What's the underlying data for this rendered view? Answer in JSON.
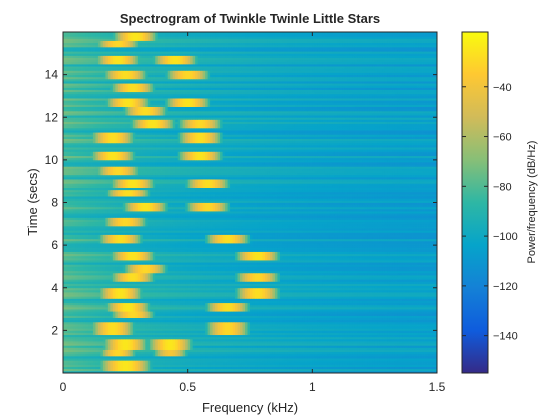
{
  "chart_data": {
    "type": "heatmap",
    "title": "Spectrogram of Twinkle Twinle Little Stars",
    "xlabel": "Frequency (kHz)",
    "ylabel": "Time (secs)",
    "xlim": [
      0,
      1.5
    ],
    "ylim": [
      0,
      16
    ],
    "xticks": [
      0,
      0.5,
      1,
      1.5
    ],
    "xtick_labels": [
      "0",
      "0.5",
      "1",
      "1.5"
    ],
    "yticks": [
      2,
      4,
      6,
      8,
      10,
      12,
      14
    ],
    "ytick_labels": [
      "2",
      "4",
      "6",
      "8",
      "10",
      "12",
      "14"
    ],
    "colorbar": {
      "label": "Power/frequency (dB/Hz)",
      "range": [
        -155,
        -18
      ],
      "ticks": [
        -140,
        -120,
        -100,
        -80,
        -60,
        -40
      ],
      "tick_labels": [
        "−140",
        "−120",
        "−100",
        "−80",
        "−60",
        "−40"
      ],
      "colormap": "parula"
    },
    "background_level_db": -100,
    "note_rows": [
      {
        "t": [
          0.15,
          0.55
        ],
        "peaks": [
          {
            "f": 0.25,
            "db": -25,
            "w": 0.07
          }
        ]
      },
      {
        "t": [
          0.85,
          1.1
        ],
        "peaks": [
          {
            "f": 0.22,
            "db": -30,
            "w": 0.05
          },
          {
            "f": 0.43,
            "db": -38,
            "w": 0.05
          }
        ]
      },
      {
        "t": [
          1.1,
          1.55
        ],
        "peaks": [
          {
            "f": 0.25,
            "db": -25,
            "w": 0.06
          },
          {
            "f": 0.43,
            "db": -25,
            "w": 0.06
          }
        ]
      },
      {
        "t": [
          1.85,
          2.35
        ],
        "peaks": [
          {
            "f": 0.2,
            "db": -28,
            "w": 0.06
          },
          {
            "f": 0.66,
            "db": -30,
            "w": 0.06
          }
        ]
      },
      {
        "t": [
          2.6,
          2.9
        ],
        "peaks": [
          {
            "f": 0.28,
            "db": -30,
            "w": 0.06
          }
        ]
      },
      {
        "t": [
          2.9,
          3.3
        ],
        "peaks": [
          {
            "f": 0.26,
            "db": -25,
            "w": 0.06
          },
          {
            "f": 0.66,
            "db": -28,
            "w": 0.06
          }
        ]
      },
      {
        "t": [
          3.55,
          3.95
        ],
        "peaks": [
          {
            "f": 0.23,
            "db": -26,
            "w": 0.06
          },
          {
            "f": 0.78,
            "db": -28,
            "w": 0.06
          }
        ]
      },
      {
        "t": [
          4.35,
          4.7
        ],
        "peaks": [
          {
            "f": 0.28,
            "db": -28,
            "w": 0.06
          },
          {
            "f": 0.78,
            "db": -30,
            "w": 0.06
          }
        ]
      },
      {
        "t": [
          4.75,
          5.1
        ],
        "peaks": [
          {
            "f": 0.33,
            "db": -30,
            "w": 0.06
          }
        ]
      },
      {
        "t": [
          5.3,
          5.7
        ],
        "peaks": [
          {
            "f": 0.28,
            "db": -26,
            "w": 0.06
          },
          {
            "f": 0.78,
            "db": -26,
            "w": 0.06
          }
        ]
      },
      {
        "t": [
          6.1,
          6.45
        ],
        "peaks": [
          {
            "f": 0.23,
            "db": -28,
            "w": 0.06
          },
          {
            "f": 0.66,
            "db": -28,
            "w": 0.06
          }
        ]
      },
      {
        "t": [
          6.95,
          7.35
        ],
        "peaks": [
          {
            "f": 0.25,
            "db": -30,
            "w": 0.06
          }
        ]
      },
      {
        "t": [
          7.6,
          8.0
        ],
        "peaks": [
          {
            "f": 0.33,
            "db": -26,
            "w": 0.06
          },
          {
            "f": 0.58,
            "db": -30,
            "w": 0.06
          }
        ]
      },
      {
        "t": [
          8.3,
          8.6
        ],
        "peaks": [
          {
            "f": 0.26,
            "db": -28,
            "w": 0.06
          }
        ]
      },
      {
        "t": [
          8.75,
          9.1
        ],
        "peaks": [
          {
            "f": 0.28,
            "db": -26,
            "w": 0.06
          },
          {
            "f": 0.58,
            "db": -28,
            "w": 0.06
          }
        ]
      },
      {
        "t": [
          9.35,
          9.7
        ],
        "peaks": [
          {
            "f": 0.22,
            "db": -30,
            "w": 0.06
          }
        ]
      },
      {
        "t": [
          10.05,
          10.45
        ],
        "peaks": [
          {
            "f": 0.2,
            "db": -26,
            "w": 0.06
          },
          {
            "f": 0.55,
            "db": -26,
            "w": 0.06
          }
        ]
      },
      {
        "t": [
          10.85,
          11.25
        ],
        "peaks": [
          {
            "f": 0.2,
            "db": -28,
            "w": 0.06
          },
          {
            "f": 0.55,
            "db": -28,
            "w": 0.06
          }
        ]
      },
      {
        "t": [
          11.55,
          11.95
        ],
        "peaks": [
          {
            "f": 0.36,
            "db": -26,
            "w": 0.06
          },
          {
            "f": 0.55,
            "db": -30,
            "w": 0.06
          }
        ]
      },
      {
        "t": [
          12.15,
          12.5
        ],
        "peaks": [
          {
            "f": 0.33,
            "db": -28,
            "w": 0.06
          }
        ]
      },
      {
        "t": [
          12.5,
          12.9
        ],
        "peaks": [
          {
            "f": 0.26,
            "db": -26,
            "w": 0.06
          },
          {
            "f": 0.5,
            "db": -26,
            "w": 0.06
          }
        ]
      },
      {
        "t": [
          13.2,
          13.6
        ],
        "peaks": [
          {
            "f": 0.28,
            "db": -28,
            "w": 0.06
          }
        ]
      },
      {
        "t": [
          13.8,
          14.2
        ],
        "peaks": [
          {
            "f": 0.25,
            "db": -28,
            "w": 0.06
          },
          {
            "f": 0.5,
            "db": -30,
            "w": 0.06
          }
        ]
      },
      {
        "t": [
          14.5,
          14.95
        ],
        "peaks": [
          {
            "f": 0.22,
            "db": -26,
            "w": 0.06
          },
          {
            "f": 0.45,
            "db": -26,
            "w": 0.06
          }
        ]
      },
      {
        "t": [
          15.3,
          15.6
        ],
        "peaks": [
          {
            "f": 0.22,
            "db": -30,
            "w": 0.06
          }
        ]
      },
      {
        "t": [
          15.6,
          16.0
        ],
        "peaks": [
          {
            "f": 0.29,
            "db": -25,
            "w": 0.06
          }
        ]
      }
    ]
  }
}
